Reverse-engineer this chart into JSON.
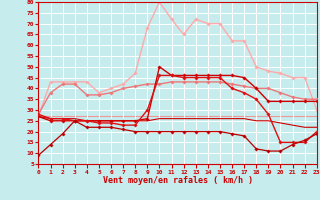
{
  "xlabel": "Vent moyen/en rafales ( km/h )",
  "xlim": [
    0,
    23
  ],
  "ylim": [
    5,
    80
  ],
  "yticks": [
    5,
    10,
    15,
    20,
    25,
    30,
    35,
    40,
    45,
    50,
    55,
    60,
    65,
    70,
    75,
    80
  ],
  "xticks": [
    0,
    1,
    2,
    3,
    4,
    5,
    6,
    7,
    8,
    9,
    10,
    11,
    12,
    13,
    14,
    15,
    16,
    17,
    18,
    19,
    20,
    21,
    22,
    23
  ],
  "bg_color": "#c6ecee",
  "grid_color": "#ffffff",
  "lines": [
    {
      "x": [
        0,
        1,
        2,
        3,
        4,
        5,
        6,
        7,
        8,
        9,
        10,
        11,
        12,
        13,
        14,
        15,
        16,
        17,
        18,
        19,
        20,
        21,
        22,
        23
      ],
      "y": [
        9,
        14,
        19,
        25,
        22,
        22,
        22,
        21,
        20,
        20,
        20,
        20,
        20,
        20,
        20,
        20,
        19,
        18,
        12,
        11,
        11,
        14,
        16,
        19
      ],
      "color": "#bb0000",
      "lw": 0.9,
      "marker": "D",
      "ms": 1.8,
      "zorder": 6
    },
    {
      "x": [
        0,
        1,
        2,
        3,
        4,
        5,
        6,
        7,
        8,
        9,
        10,
        11,
        12,
        13,
        14,
        15,
        16,
        17,
        18,
        19,
        20,
        21,
        22,
        23
      ],
      "y": [
        27,
        25,
        25,
        25,
        25,
        25,
        25,
        25,
        25,
        26,
        50,
        46,
        46,
        46,
        46,
        46,
        46,
        45,
        40,
        34,
        34,
        34,
        34,
        34
      ],
      "color": "#cc0000",
      "lw": 1.0,
      "marker": "D",
      "ms": 1.8,
      "zorder": 5
    },
    {
      "x": [
        0,
        1,
        2,
        3,
        4,
        5,
        6,
        7,
        8,
        9,
        10,
        11,
        12,
        13,
        14,
        15,
        16,
        17,
        18,
        19,
        20,
        21,
        22,
        23
      ],
      "y": [
        28,
        26,
        26,
        25,
        25,
        24,
        24,
        23,
        23,
        30,
        46,
        46,
        45,
        45,
        45,
        45,
        40,
        38,
        35,
        28,
        15,
        15,
        15,
        20
      ],
      "color": "#dd1111",
      "lw": 1.0,
      "marker": "D",
      "ms": 1.8,
      "zorder": 5
    },
    {
      "x": [
        0,
        1,
        2,
        3,
        4,
        5,
        6,
        7,
        8,
        9,
        10,
        11,
        12,
        13,
        14,
        15,
        16,
        17,
        18,
        19,
        20,
        21,
        22,
        23
      ],
      "y": [
        27,
        26,
        26,
        26,
        25,
        25,
        25,
        25,
        25,
        25,
        26,
        26,
        26,
        26,
        26,
        26,
        26,
        26,
        25,
        25,
        24,
        23,
        22,
        22
      ],
      "color": "#cc0000",
      "lw": 0.8,
      "marker": null,
      "ms": 0,
      "zorder": 3
    },
    {
      "x": [
        0,
        1,
        2,
        3,
        4,
        5,
        6,
        7,
        8,
        9,
        10,
        11,
        12,
        13,
        14,
        15,
        16,
        17,
        18,
        19,
        20,
        21,
        22,
        23
      ],
      "y": [
        28,
        38,
        42,
        42,
        37,
        37,
        38,
        40,
        41,
        42,
        42,
        43,
        43,
        43,
        43,
        43,
        42,
        41,
        40,
        40,
        38,
        36,
        35,
        35
      ],
      "color": "#ee7777",
      "lw": 1.0,
      "marker": "D",
      "ms": 1.8,
      "zorder": 4
    },
    {
      "x": [
        0,
        1,
        2,
        3,
        4,
        5,
        6,
        7,
        8,
        9,
        10,
        11,
        12,
        13,
        14,
        15,
        16,
        17,
        18,
        19,
        20,
        21,
        22,
        23
      ],
      "y": [
        27,
        43,
        43,
        43,
        43,
        38,
        40,
        42,
        47,
        68,
        80,
        72,
        65,
        72,
        70,
        70,
        62,
        62,
        50,
        48,
        47,
        45,
        45,
        30
      ],
      "color": "#ffaaaa",
      "lw": 1.0,
      "marker": "D",
      "ms": 1.8,
      "zorder": 2
    },
    {
      "x": [
        0,
        1,
        2,
        3,
        4,
        5,
        6,
        7,
        8,
        9,
        10,
        11,
        12,
        13,
        14,
        15,
        16,
        17,
        18,
        19,
        20,
        21,
        22,
        23
      ],
      "y": [
        27,
        27,
        27,
        27,
        27,
        27,
        27,
        27,
        27,
        27,
        27,
        27,
        27,
        27,
        27,
        27,
        27,
        27,
        27,
        27,
        27,
        27,
        27,
        27
      ],
      "color": "#ee9999",
      "lw": 0.8,
      "marker": null,
      "ms": 0,
      "zorder": 1
    }
  ]
}
